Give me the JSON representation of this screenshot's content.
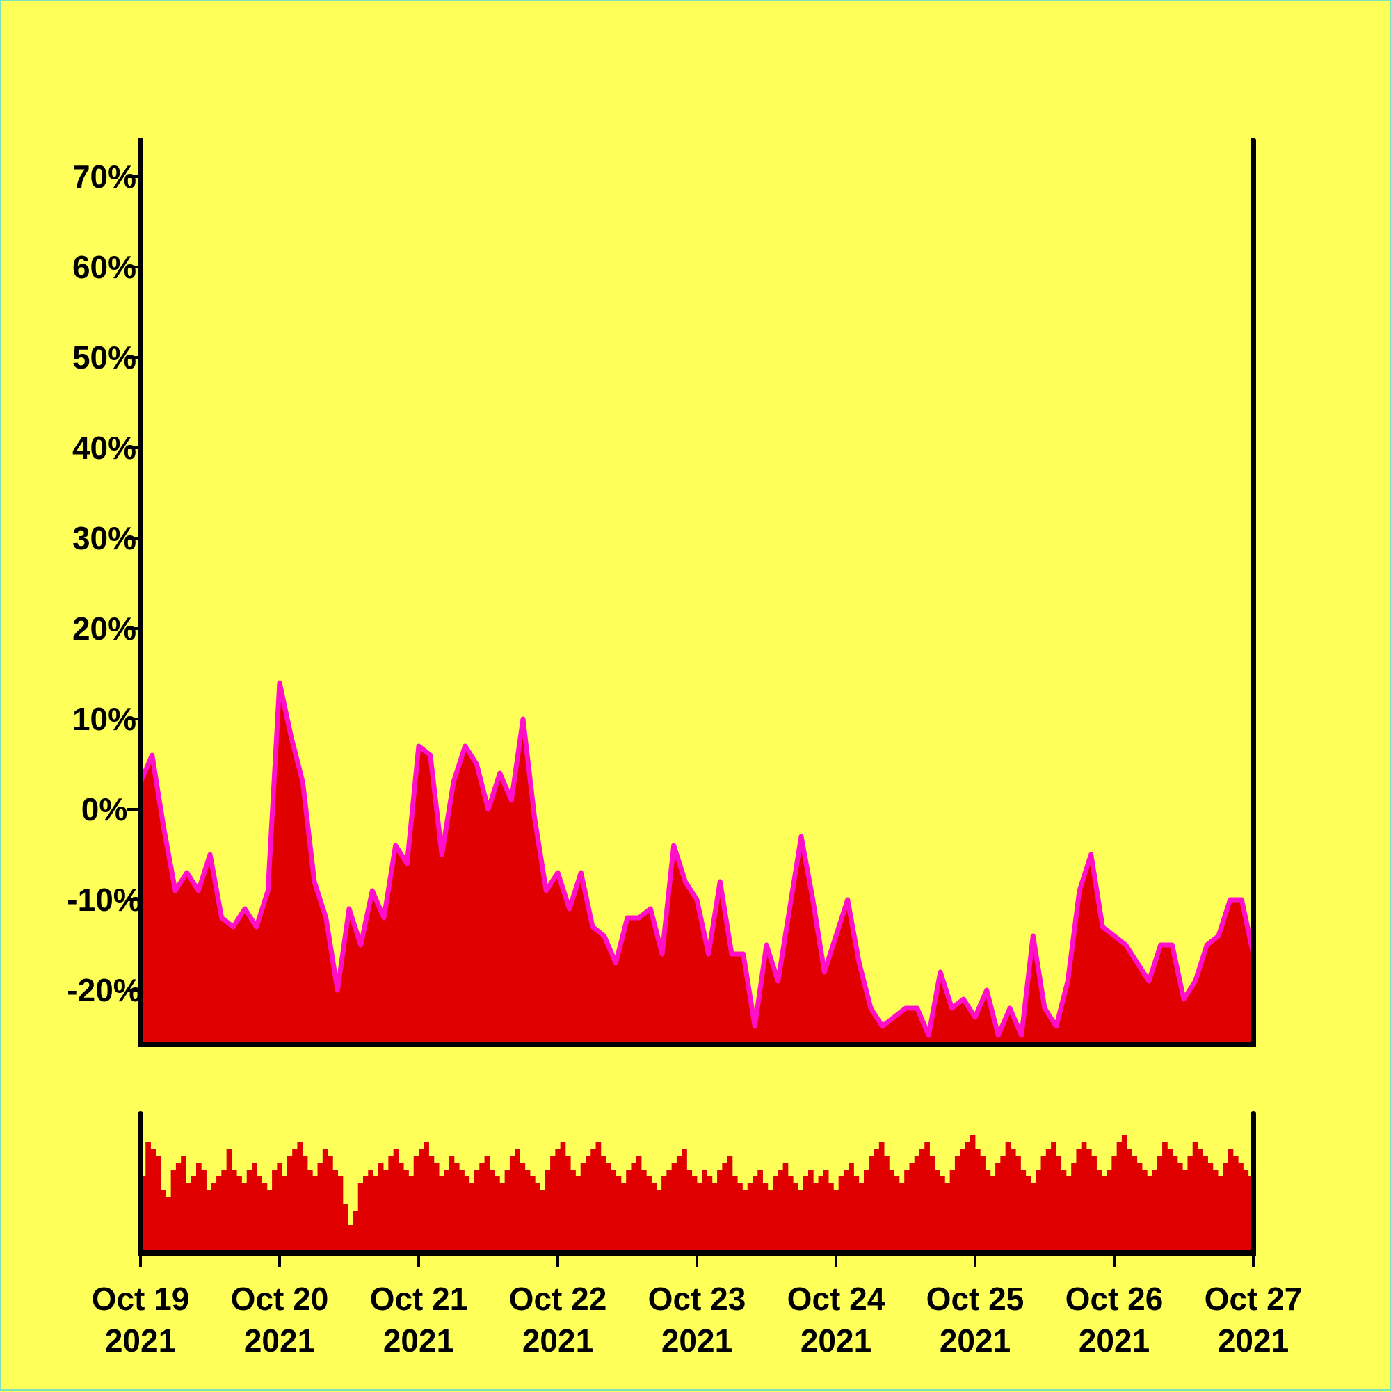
{
  "chart_data": [
    {
      "type": "area",
      "title": "",
      "xlabel": "",
      "ylabel": "",
      "ylim": [
        -26,
        74
      ],
      "y_ticks": [
        -20,
        -10,
        0,
        10,
        20,
        30,
        40,
        50,
        60,
        70
      ],
      "y_tick_labels": [
        "-20%",
        "-10%",
        "0%",
        "10%",
        "20%",
        "30%",
        "40%",
        "50%",
        "60%",
        "70%"
      ],
      "x_tick_dates": [
        "Oct 19 2021",
        "Oct 20 2021",
        "Oct 21 2021",
        "Oct 22 2021",
        "Oct 23 2021",
        "Oct 24 2021",
        "Oct 25 2021",
        "Oct 26 2021",
        "Oct 27 2021"
      ],
      "x_tick_labels": [
        {
          "month_day": "Oct 19",
          "year": "2021"
        },
        {
          "month_day": "Oct 20",
          "year": "2021"
        },
        {
          "month_day": "Oct 21",
          "year": "2021"
        },
        {
          "month_day": "Oct 22",
          "year": "2021"
        },
        {
          "month_day": "Oct 23",
          "year": "2021"
        },
        {
          "month_day": "Oct 24",
          "year": "2021"
        },
        {
          "month_day": "Oct 25",
          "year": "2021"
        },
        {
          "month_day": "Oct 26",
          "year": "2021"
        },
        {
          "month_day": "Oct 27 ",
          "year": "2021"
        }
      ],
      "colors": {
        "fill": "#e00000",
        "line": "#ff10c8",
        "axis": "#000000",
        "background": "#ffff5a"
      },
      "series": [
        {
          "x": [
            "2021-10-19 00:00",
            "2021-10-19 02:00",
            "2021-10-19 04:00",
            "2021-10-19 06:00",
            "2021-10-19 08:00",
            "2021-10-19 10:00",
            "2021-10-19 12:00",
            "2021-10-19 14:00",
            "2021-10-19 16:00",
            "2021-10-19 18:00",
            "2021-10-19 20:00",
            "2021-10-19 22:00",
            "2021-10-20 00:00",
            "2021-10-20 02:00",
            "2021-10-20 04:00",
            "2021-10-20 06:00",
            "2021-10-20 08:00",
            "2021-10-20 10:00",
            "2021-10-20 12:00",
            "2021-10-20 14:00",
            "2021-10-20 16:00",
            "2021-10-20 18:00",
            "2021-10-20 20:00",
            "2021-10-20 22:00",
            "2021-10-21 00:00",
            "2021-10-21 02:00",
            "2021-10-21 04:00",
            "2021-10-21 06:00",
            "2021-10-21 08:00",
            "2021-10-21 10:00",
            "2021-10-21 12:00",
            "2021-10-21 14:00",
            "2021-10-21 16:00",
            "2021-10-21 18:00",
            "2021-10-21 20:00",
            "2021-10-21 22:00",
            "2021-10-22 00:00",
            "2021-10-22 02:00",
            "2021-10-22 04:00",
            "2021-10-22 06:00",
            "2021-10-22 08:00",
            "2021-10-22 10:00",
            "2021-10-22 12:00",
            "2021-10-22 14:00",
            "2021-10-22 16:00",
            "2021-10-22 18:00",
            "2021-10-22 20:00",
            "2021-10-22 22:00",
            "2021-10-23 00:00",
            "2021-10-23 02:00",
            "2021-10-23 04:00",
            "2021-10-23 06:00",
            "2021-10-23 08:00",
            "2021-10-23 10:00",
            "2021-10-23 12:00",
            "2021-10-23 14:00",
            "2021-10-23 16:00",
            "2021-10-23 18:00",
            "2021-10-23 20:00",
            "2021-10-23 22:00",
            "2021-10-24 00:00",
            "2021-10-24 02:00",
            "2021-10-24 04:00",
            "2021-10-24 06:00",
            "2021-10-24 08:00",
            "2021-10-24 10:00",
            "2021-10-24 12:00",
            "2021-10-24 14:00",
            "2021-10-24 16:00",
            "2021-10-24 18:00",
            "2021-10-24 20:00",
            "2021-10-24 22:00",
            "2021-10-25 00:00",
            "2021-10-25 02:00",
            "2021-10-25 04:00",
            "2021-10-25 06:00",
            "2021-10-25 08:00",
            "2021-10-25 10:00",
            "2021-10-25 12:00",
            "2021-10-25 14:00",
            "2021-10-25 16:00",
            "2021-10-25 18:00",
            "2021-10-25 20:00",
            "2021-10-25 22:00",
            "2021-10-26 00:00",
            "2021-10-26 02:00",
            "2021-10-26 04:00",
            "2021-10-26 06:00",
            "2021-10-26 08:00",
            "2021-10-26 10:00",
            "2021-10-26 12:00",
            "2021-10-26 14:00",
            "2021-10-26 16:00",
            "2021-10-26 18:00",
            "2021-10-26 20:00",
            "2021-10-26 22:00",
            "2021-10-27 00:00"
          ],
          "values": [
            3,
            6,
            -2,
            -9,
            -7,
            -9,
            -5,
            -12,
            -13,
            -11,
            -13,
            -9,
            14,
            8,
            3,
            -8,
            -12,
            -20,
            -11,
            -15,
            -9,
            -12,
            -4,
            -6,
            7,
            6,
            -5,
            3,
            7,
            5,
            0,
            4,
            1,
            10,
            -1,
            -9,
            -7,
            -11,
            -7,
            -13,
            -14,
            -17,
            -12,
            -12,
            -11,
            -16,
            -4,
            -8,
            -10,
            -16,
            -8,
            -16,
            -16,
            -24,
            -15,
            -19,
            -11,
            -3,
            -10,
            -18,
            -14,
            -10,
            -17,
            -22,
            -24,
            -23,
            -22,
            -22,
            -25,
            -18,
            -22,
            -21,
            -23,
            -20,
            -25,
            -22,
            -25,
            -14,
            -22,
            -24,
            -19,
            -9,
            -5,
            -13,
            -14,
            -15,
            -17,
            -19,
            -15,
            -15,
            -21,
            -19,
            -15,
            -14,
            -10,
            -10,
            -16
          ]
        }
      ]
    },
    {
      "type": "bar",
      "title": "",
      "xlabel": "",
      "ylabel": "",
      "ylim": [
        0,
        1
      ],
      "colors": {
        "fill": "#e00000"
      },
      "values": [
        0.55,
        0.8,
        0.75,
        0.7,
        0.45,
        0.4,
        0.6,
        0.65,
        0.7,
        0.5,
        0.55,
        0.65,
        0.6,
        0.45,
        0.5,
        0.55,
        0.6,
        0.75,
        0.6,
        0.55,
        0.5,
        0.6,
        0.65,
        0.55,
        0.5,
        0.45,
        0.6,
        0.65,
        0.55,
        0.7,
        0.75,
        0.8,
        0.7,
        0.6,
        0.55,
        0.65,
        0.75,
        0.7,
        0.6,
        0.55,
        0.35,
        0.2,
        0.3,
        0.5,
        0.55,
        0.6,
        0.55,
        0.65,
        0.6,
        0.7,
        0.75,
        0.65,
        0.6,
        0.55,
        0.7,
        0.75,
        0.8,
        0.7,
        0.65,
        0.55,
        0.6,
        0.7,
        0.65,
        0.6,
        0.55,
        0.5,
        0.6,
        0.65,
        0.7,
        0.6,
        0.55,
        0.5,
        0.6,
        0.7,
        0.75,
        0.65,
        0.6,
        0.55,
        0.5,
        0.45,
        0.6,
        0.7,
        0.75,
        0.8,
        0.7,
        0.6,
        0.55,
        0.65,
        0.7,
        0.75,
        0.8,
        0.7,
        0.65,
        0.6,
        0.55,
        0.5,
        0.6,
        0.65,
        0.7,
        0.6,
        0.55,
        0.5,
        0.45,
        0.55,
        0.6,
        0.65,
        0.7,
        0.75,
        0.6,
        0.55,
        0.5,
        0.6,
        0.55,
        0.5,
        0.6,
        0.65,
        0.7,
        0.55,
        0.5,
        0.45,
        0.5,
        0.55,
        0.6,
        0.5,
        0.45,
        0.55,
        0.6,
        0.65,
        0.55,
        0.5,
        0.45,
        0.55,
        0.6,
        0.5,
        0.55,
        0.6,
        0.5,
        0.45,
        0.55,
        0.6,
        0.65,
        0.55,
        0.5,
        0.6,
        0.7,
        0.75,
        0.8,
        0.7,
        0.6,
        0.55,
        0.5,
        0.6,
        0.65,
        0.7,
        0.75,
        0.8,
        0.7,
        0.6,
        0.55,
        0.5,
        0.6,
        0.7,
        0.75,
        0.8,
        0.85,
        0.75,
        0.7,
        0.6,
        0.55,
        0.65,
        0.7,
        0.8,
        0.75,
        0.7,
        0.6,
        0.55,
        0.5,
        0.6,
        0.7,
        0.75,
        0.8,
        0.7,
        0.6,
        0.55,
        0.65,
        0.75,
        0.8,
        0.75,
        0.7,
        0.6,
        0.55,
        0.6,
        0.7,
        0.8,
        0.85,
        0.75,
        0.7,
        0.65,
        0.6,
        0.55,
        0.6,
        0.7,
        0.8,
        0.75,
        0.7,
        0.65,
        0.6,
        0.7,
        0.8,
        0.75,
        0.7,
        0.65,
        0.6,
        0.55,
        0.65,
        0.75,
        0.7,
        0.65,
        0.6,
        0.55
      ]
    }
  ]
}
